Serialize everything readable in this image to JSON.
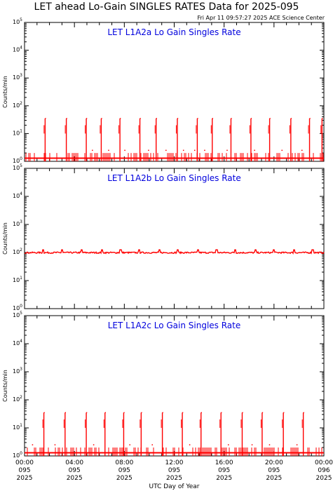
{
  "title": "LET ahead Lo-Gain SINGLES RATES Data for 2025-095",
  "timestamp": "Fri Apr 11 09:57:27 2025 ACE Science Center",
  "colors": {
    "series": "#ff0000",
    "panel_title": "#0000dd",
    "axes": "#000000"
  },
  "chart_data": {
    "type": "line",
    "x_axis": {
      "label": "UTC Day of Year",
      "range_hours": [
        0,
        24
      ],
      "ticks": [
        {
          "hour": 0,
          "time": "00:00",
          "doy": "095",
          "year": "2025"
        },
        {
          "hour": 4,
          "time": "04:00",
          "doy": "095",
          "year": "2025"
        },
        {
          "hour": 8,
          "time": "08:00",
          "doy": "095",
          "year": "2025"
        },
        {
          "hour": 12,
          "time": "12:00",
          "doy": "095",
          "year": "2025"
        },
        {
          "hour": 16,
          "time": "16:00",
          "doy": "095",
          "year": "2025"
        },
        {
          "hour": 20,
          "time": "20:00",
          "doy": "095",
          "year": "2025"
        },
        {
          "hour": 24,
          "time": "00:00",
          "doy": "096",
          "year": "2025"
        }
      ]
    },
    "y_axis": {
      "label": "Counts/min",
      "scale": "log",
      "range": [
        1,
        100000
      ],
      "exponents": [
        0,
        1,
        2,
        3,
        4,
        5
      ]
    },
    "panels": [
      {
        "title": "LET L1A2a Lo Gain Singles Rate",
        "baseline": 1.3,
        "low_rate_level": 2,
        "spike_value": 35,
        "spike_hours": [
          1.65,
          3.35,
          4.95,
          6.15,
          7.65,
          9.25,
          10.55,
          12.25,
          13.85,
          15.05,
          16.55,
          18.15,
          19.65,
          21.35,
          22.85,
          23.85
        ],
        "marker_hours": [
          5.4,
          6.7,
          8.0,
          9.9,
          11.3,
          12.7,
          13.6,
          14.4,
          16.2,
          18.4,
          20.6,
          22.2
        ]
      },
      {
        "title": "LET L1A2b Lo Gain Singles Rate",
        "baseline": 100,
        "bump_value": 125,
        "bump_hours": [
          1.5,
          3.0,
          4.6,
          6.2,
          7.7,
          9.2,
          10.8,
          12.3,
          13.9,
          15.4,
          16.9,
          18.5,
          20.0,
          21.6,
          23.1
        ]
      },
      {
        "title": "LET L1A2c Lo Gain Singles Rate",
        "baseline": 1.3,
        "low_rate_level": 2,
        "spike_value": 35,
        "spike_hours": [
          1.55,
          3.25,
          4.95,
          6.45,
          7.95,
          9.35,
          11.05,
          12.65,
          14.15,
          15.75,
          17.45,
          19.05,
          20.75,
          22.35
        ],
        "marker_hours": [
          0.6,
          2.4,
          5.5,
          8.4,
          10.2,
          13.2,
          16.3,
          18.2,
          19.6,
          21.8
        ]
      }
    ]
  }
}
